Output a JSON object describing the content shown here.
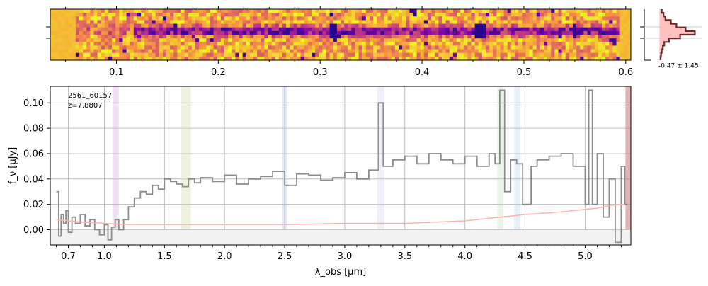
{
  "chart_data": [
    {
      "type": "heatmap",
      "panel": "2d-spectrum",
      "colormap": "plasma",
      "x_ticks": [
        0.1,
        0.2,
        0.3,
        0.4,
        0.5,
        0.6
      ],
      "x_tick_labels": [
        "0.1",
        "0.2",
        "0.3",
        "0.4",
        "0.5",
        "0.6"
      ],
      "xlim": [
        0.035,
        0.605
      ],
      "rows": 14,
      "trace_row_center": 5.5
    },
    {
      "type": "line",
      "panel": "profile",
      "annotation": "-0.47 ± 1.45",
      "profile_values": [
        0.05,
        0.1,
        0.15,
        0.3,
        0.45,
        0.7,
        0.95,
        0.55,
        0.25,
        0.12,
        0.08,
        0.05,
        0.03,
        0.02
      ]
    },
    {
      "type": "line",
      "panel": "1d-spectrum",
      "annotations": [
        "2561_60157",
        "z=7.8807"
      ],
      "ylabel": "f_ν [μJy]",
      "xlabel": "λ_obs [μm]",
      "xlim": [
        0.55,
        5.38
      ],
      "ylim": [
        -0.012,
        0.113
      ],
      "grid": true,
      "y_ticks": [
        0.0,
        0.02,
        0.04,
        0.06,
        0.08,
        0.1
      ],
      "y_tick_labels": [
        "0.00",
        "0.02",
        "0.04",
        "0.06",
        "0.08",
        "0.10"
      ],
      "x_ticks": [
        0.7,
        1.0,
        1.5,
        2.0,
        2.5,
        3.0,
        3.5,
        4.0,
        4.5,
        5.0
      ],
      "x_tick_labels": [
        "0.7",
        "1.0",
        "1.5",
        "2.0",
        "2.5",
        "3.0",
        "3.5",
        "4.0",
        "4.5",
        "5.0"
      ],
      "emission_bands": [
        {
          "x0": 1.07,
          "x1": 1.12,
          "color": "#d9a6e0"
        },
        {
          "x0": 1.64,
          "x1": 1.72,
          "color": "#cfd9a3"
        },
        {
          "x0": 2.48,
          "x1": 2.52,
          "color": "#a9c8e8"
        },
        {
          "x0": 3.27,
          "x1": 3.33,
          "color": "#ddd0ef"
        },
        {
          "x0": 4.27,
          "x1": 4.32,
          "color": "#bfe3bf"
        },
        {
          "x0": 4.41,
          "x1": 4.46,
          "color": "#bcd4ee"
        },
        {
          "x0": 5.335,
          "x1": 5.38,
          "color": "#cc7777"
        }
      ],
      "series": [
        {
          "color": "#8c8c8c",
          "x": [
            0.6,
            0.62,
            0.64,
            0.66,
            0.68,
            0.7,
            0.73,
            0.76,
            0.8,
            0.84,
            0.88,
            0.92,
            0.96,
            1.0,
            1.03,
            1.06,
            1.09,
            1.12,
            1.16,
            1.2,
            1.25,
            1.3,
            1.35,
            1.4,
            1.45,
            1.5,
            1.55,
            1.6,
            1.65,
            1.7,
            1.75,
            1.8,
            1.9,
            2.0,
            2.1,
            2.2,
            2.3,
            2.4,
            2.5,
            2.6,
            2.7,
            2.8,
            2.9,
            3.0,
            3.1,
            3.2,
            3.28,
            3.32,
            3.4,
            3.5,
            3.6,
            3.7,
            3.8,
            3.9,
            4.0,
            4.1,
            4.2,
            4.25,
            4.29,
            4.33,
            4.38,
            4.43,
            4.48,
            4.55,
            4.6,
            4.7,
            4.8,
            4.9,
            5.0,
            5.03,
            5.06,
            5.1,
            5.15,
            5.2,
            5.25,
            5.3,
            5.33
          ],
          "y": [
            0.03,
            -0.005,
            0.012,
            0.005,
            0.015,
            -0.002,
            0.01,
            0.005,
            0.012,
            0.003,
            0.008,
            0.0,
            -0.004,
            0.004,
            -0.008,
            0.002,
            0.008,
            0.0,
            0.008,
            0.018,
            0.025,
            0.03,
            0.028,
            0.035,
            0.032,
            0.04,
            0.038,
            0.036,
            0.034,
            0.04,
            0.037,
            0.041,
            0.038,
            0.043,
            0.036,
            0.04,
            0.042,
            0.046,
            0.035,
            0.044,
            0.043,
            0.039,
            0.041,
            0.045,
            0.04,
            0.047,
            0.1,
            0.05,
            0.055,
            0.058,
            0.052,
            0.06,
            0.055,
            0.052,
            0.058,
            0.05,
            0.06,
            0.052,
            0.11,
            0.03,
            0.055,
            0.052,
            0.02,
            0.05,
            0.055,
            0.058,
            0.06,
            0.05,
            0.02,
            0.11,
            0.02,
            0.06,
            0.01,
            0.04,
            -0.01,
            0.05,
            0.02
          ]
        },
        {
          "color": "#ffb0b0",
          "x": [
            0.6,
            0.8,
            1.0,
            1.2,
            1.5,
            2.0,
            2.5,
            3.0,
            3.5,
            4.0,
            4.3,
            4.5,
            4.8,
            5.0,
            5.1,
            5.2,
            5.3,
            5.33
          ],
          "y": [
            0.008,
            0.006,
            0.005,
            0.004,
            0.004,
            0.004,
            0.004,
            0.005,
            0.005,
            0.007,
            0.01,
            0.012,
            0.014,
            0.016,
            0.017,
            0.019,
            0.02,
            0.02
          ]
        }
      ]
    }
  ]
}
